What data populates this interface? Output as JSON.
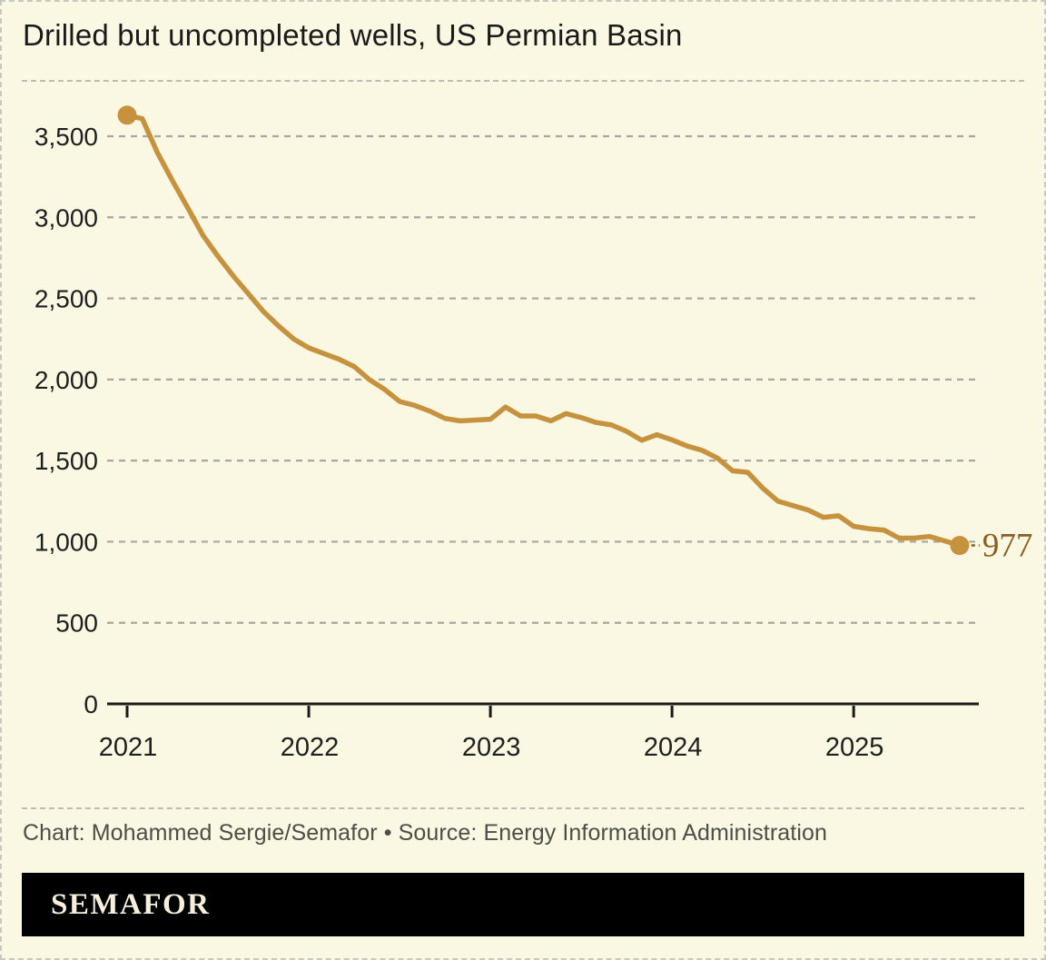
{
  "title": "Drilled but uncompleted wells, US Permian Basin",
  "credit": "Chart: Mohammed Sergie/Semafor • Source: Energy Information Administration",
  "brand": "SEMAFOR",
  "colors": {
    "background": "#FAF7E2",
    "line": "#C6923E",
    "end_dot": "#C6923E",
    "end_label": "#8C5F20",
    "grid": "#A8A79E",
    "axis": "#1A1A1A",
    "tick_label": "#1F1F1F",
    "title_text": "#1A1A1A",
    "credit_text": "#4E4E48",
    "brand_bar": "#000000",
    "brand_text": "#F6F0DB"
  },
  "chart_data": {
    "type": "line",
    "title": "Drilled but uncompleted wells, US Permian Basin",
    "x": [
      "2021-01",
      "2021-02",
      "2021-03",
      "2021-04",
      "2021-05",
      "2021-06",
      "2021-07",
      "2021-08",
      "2021-09",
      "2021-10",
      "2021-11",
      "2021-12",
      "2022-01",
      "2022-02",
      "2022-03",
      "2022-04",
      "2022-05",
      "2022-06",
      "2022-07",
      "2022-08",
      "2022-09",
      "2022-10",
      "2022-11",
      "2022-12",
      "2023-01",
      "2023-02",
      "2023-03",
      "2023-04",
      "2023-05",
      "2023-06",
      "2023-07",
      "2023-08",
      "2023-09",
      "2023-10",
      "2023-11",
      "2023-12",
      "2024-01",
      "2024-02",
      "2024-03",
      "2024-04",
      "2024-05",
      "2024-06",
      "2024-07",
      "2024-08",
      "2024-09",
      "2024-10",
      "2024-11",
      "2024-12",
      "2025-01",
      "2025-02",
      "2025-03",
      "2025-04",
      "2025-05",
      "2025-06",
      "2025-07",
      "2025-08"
    ],
    "values": [
      3630,
      3608,
      3400,
      3225,
      3060,
      2890,
      2760,
      2640,
      2530,
      2420,
      2330,
      2250,
      2195,
      2160,
      2125,
      2080,
      2000,
      1940,
      1865,
      1840,
      1805,
      1760,
      1745,
      1750,
      1755,
      1830,
      1775,
      1775,
      1745,
      1790,
      1765,
      1735,
      1720,
      1680,
      1625,
      1660,
      1628,
      1590,
      1563,
      1516,
      1437,
      1428,
      1330,
      1250,
      1222,
      1195,
      1150,
      1160,
      1095,
      1080,
      1072,
      1022,
      1022,
      1032,
      1005,
      977
    ],
    "end_label": "977",
    "x_tick_labels": [
      "2021",
      "2022",
      "2023",
      "2024",
      "2025"
    ],
    "y_ticks": [
      0,
      500,
      1000,
      1500,
      2000,
      2500,
      3000,
      3500
    ],
    "y_tick_labels": [
      "0",
      "500",
      "1,000",
      "1,500",
      "2,000",
      "2,500",
      "3,000",
      "3,500"
    ],
    "ylim": [
      0,
      3750
    ],
    "xlabel": "",
    "ylabel": "",
    "grid": "horizontal-dashed",
    "legend": "none",
    "markers": "dot-at-first-and-last-point"
  }
}
